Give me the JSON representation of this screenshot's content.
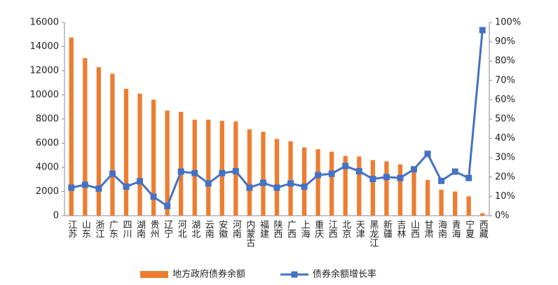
{
  "chart_data": {
    "type": "bar",
    "categories": [
      "江苏",
      "山东",
      "浙江",
      "广东",
      "四川",
      "湖南",
      "贵州",
      "辽宁",
      "河北",
      "湖北",
      "云南",
      "安徽",
      "河南",
      "内蒙古",
      "福建",
      "陕西",
      "广西",
      "上海",
      "重庆",
      "江西",
      "北京",
      "天津",
      "黑龙江",
      "新疆",
      "吉林",
      "山西",
      "甘肃",
      "海南",
      "青海",
      "宁夏",
      "西藏"
    ],
    "series": [
      {
        "name": "地方政府债券余额",
        "type": "bar",
        "color": "#ed7d31",
        "values": [
          14750,
          13050,
          12300,
          11750,
          10500,
          10100,
          9600,
          8700,
          8600,
          7950,
          7950,
          7850,
          7800,
          7150,
          6950,
          6350,
          6150,
          5650,
          5500,
          5300,
          4950,
          4900,
          4600,
          4500,
          4250,
          3850,
          2950,
          2150,
          2000,
          1600,
          200
        ]
      },
      {
        "name": "债券余额增长率",
        "type": "line",
        "axis": "y2",
        "color": "#4472c4",
        "values": [
          14.5,
          16,
          14,
          21.7,
          15,
          17.8,
          9.8,
          5,
          22.8,
          22,
          16.7,
          22,
          23,
          14.5,
          17,
          14.5,
          16.7,
          15,
          21,
          21.7,
          25.7,
          23,
          19,
          20,
          19.5,
          24,
          32,
          18,
          22.8,
          19.5,
          96
        ]
      }
    ],
    "ylim": [
      0,
      16000
    ],
    "yticks": [
      0,
      2000,
      4000,
      6000,
      8000,
      10000,
      12000,
      14000,
      16000
    ],
    "y2lim": [
      0,
      100
    ],
    "y2ticks": [
      {
        "value": 0,
        "label": "0%"
      },
      {
        "value": 10,
        "label": "10%"
      },
      {
        "value": 20,
        "label": "20%"
      },
      {
        "value": 30,
        "label": "30%"
      },
      {
        "value": 40,
        "label": "40%"
      },
      {
        "value": 50,
        "label": "50%"
      },
      {
        "value": 60,
        "label": "60%"
      },
      {
        "value": 70,
        "label": "70%"
      },
      {
        "value": 80,
        "label": "80%"
      },
      {
        "value": 90,
        "label": "90%"
      },
      {
        "value": 100,
        "label": "100%"
      }
    ],
    "grid": false,
    "legend": "bottom"
  }
}
